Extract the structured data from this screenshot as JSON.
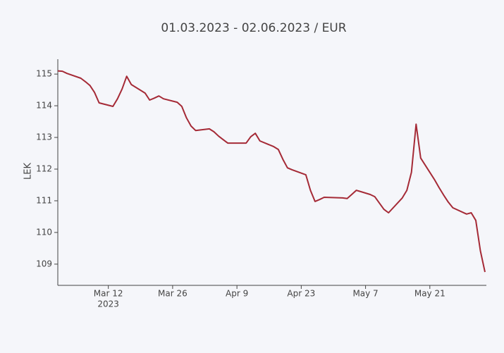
{
  "chart_data": {
    "type": "line",
    "title": "01.03.2023 - 02.06.2023 / EUR",
    "y_label": "LEK",
    "x": [
      "2023-03-01",
      "2023-03-02",
      "2023-03-03",
      "2023-03-06",
      "2023-03-07",
      "2023-03-08",
      "2023-03-09",
      "2023-03-10",
      "2023-03-13",
      "2023-03-14",
      "2023-03-15",
      "2023-03-16",
      "2023-03-17",
      "2023-03-20",
      "2023-03-21",
      "2023-03-22",
      "2023-03-23",
      "2023-03-24",
      "2023-03-27",
      "2023-03-28",
      "2023-03-29",
      "2023-03-30",
      "2023-03-31",
      "2023-04-03",
      "2023-04-04",
      "2023-04-05",
      "2023-04-06",
      "2023-04-07",
      "2023-04-11",
      "2023-04-12",
      "2023-04-13",
      "2023-04-14",
      "2023-04-17",
      "2023-04-18",
      "2023-04-19",
      "2023-04-20",
      "2023-04-21",
      "2023-04-24",
      "2023-04-25",
      "2023-04-26",
      "2023-04-27",
      "2023-04-28",
      "2023-05-02",
      "2023-05-03",
      "2023-05-04",
      "2023-05-05",
      "2023-05-08",
      "2023-05-09",
      "2023-05-10",
      "2023-05-11",
      "2023-05-12",
      "2023-05-15",
      "2023-05-16",
      "2023-05-17",
      "2023-05-18",
      "2023-05-19",
      "2023-05-22",
      "2023-05-23",
      "2023-05-24",
      "2023-05-25",
      "2023-05-26",
      "2023-05-29",
      "2023-05-30",
      "2023-05-31",
      "2023-06-01",
      "2023-06-02"
    ],
    "series": [
      {
        "name": "EUR",
        "color": "#a52a36",
        "values": [
          115.1,
          115.09,
          115.02,
          114.87,
          114.76,
          114.64,
          114.42,
          114.09,
          113.98,
          114.22,
          114.53,
          114.93,
          114.67,
          114.4,
          114.18,
          114.24,
          114.31,
          114.22,
          114.11,
          113.98,
          113.62,
          113.36,
          113.22,
          113.27,
          113.18,
          113.04,
          112.93,
          112.82,
          112.82,
          113.02,
          113.13,
          112.89,
          112.71,
          112.62,
          112.31,
          112.04,
          111.98,
          111.82,
          111.33,
          110.98,
          111.04,
          111.11,
          111.09,
          111.07,
          111.2,
          111.33,
          111.2,
          111.13,
          110.93,
          110.73,
          110.62,
          111.09,
          111.33,
          111.9,
          113.42,
          112.35,
          111.67,
          111.42,
          111.18,
          110.96,
          110.78,
          110.58,
          110.62,
          110.38,
          109.42,
          108.75
        ]
      }
    ],
    "xlim": [
      "2023-03-01",
      "2023-06-02"
    ],
    "xticks": [
      {
        "value": "2023-03-12",
        "label": "Mar 12"
      },
      {
        "value": "2023-03-26",
        "label": "Mar 26"
      },
      {
        "value": "2023-04-09",
        "label": "Apr 9"
      },
      {
        "value": "2023-04-23",
        "label": "Apr 23"
      },
      {
        "value": "2023-05-07",
        "label": "May 7"
      },
      {
        "value": "2023-05-21",
        "label": "May 21"
      }
    ],
    "xtick_year": "2023",
    "ylim": [
      108.33,
      115.47
    ],
    "yticks": [
      109,
      110,
      111,
      112,
      113,
      114,
      115
    ]
  }
}
